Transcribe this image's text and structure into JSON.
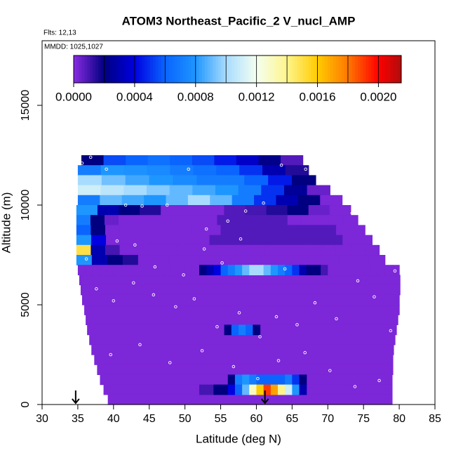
{
  "chart_data": {
    "type": "heatmap",
    "title": "ATOM3 Northeast_Pacific_2 V_nucl_AMP",
    "subtitle": "Flts: 12,13",
    "annotation": "MMDD: 1025,1027",
    "xlabel": "Latitude (deg N)",
    "ylabel": "Altitude (m)",
    "xlim": [
      30,
      85
    ],
    "xticks": [
      30,
      35,
      40,
      45,
      50,
      55,
      60,
      65,
      70,
      75,
      80,
      85
    ],
    "ylim": [
      0,
      18240
    ],
    "yticks": [
      0,
      5000,
      10000,
      15000
    ],
    "clim": [
      0,
      0.00215
    ],
    "colorstops": [
      0,
      0.0002,
      0.0004,
      0.0006,
      0.0008,
      0.001,
      0.0012,
      0.0014,
      0.0016,
      0.0018,
      0.002,
      0.0022
    ],
    "colors": [
      "#8a2be2",
      "#000080",
      "#0000e0",
      "#0a64ff",
      "#1e96ff",
      "#a8dcff",
      "#f4fff0",
      "#fff48c",
      "#ffcc00",
      "#ff7800",
      "#ff0000",
      "#961010"
    ],
    "cticks": [
      {
        "value": 0,
        "label": "0.0000"
      },
      0.0004,
      0.0008,
      0.0012,
      0.0016,
      {
        "value": 0.002,
        "label": "0.0020"
      }
    ],
    "rows": [
      {
        "alt": [
          6000,
          6500
        ],
        "lat": [
          35.2,
          80.1
        ],
        "values": [
          2e-05
        ]
      },
      {
        "alt": [
          5500,
          6000
        ],
        "lat": [
          35.4,
          80.1
        ],
        "values": [
          2e-05
        ]
      },
      {
        "alt": [
          5000,
          5500
        ],
        "lat": [
          35.6,
          80
        ],
        "values": [
          2e-05
        ]
      },
      {
        "alt": [
          4500,
          5000
        ],
        "lat": [
          35.9,
          80
        ],
        "values": [
          2e-05
        ]
      },
      {
        "alt": [
          4000,
          4500
        ],
        "lat": [
          36.1,
          79.8
        ],
        "values": [
          2e-05
        ]
      },
      {
        "alt": [
          3500,
          4000
        ],
        "lat": [
          36.3,
          79.6
        ],
        "values": [
          2e-05
        ]
      },
      {
        "alt": [
          3000,
          3500
        ],
        "lat": [
          36.6,
          79.4
        ],
        "values": [
          2e-05
        ]
      },
      {
        "alt": [
          2500,
          3000
        ],
        "lat": [
          36.9,
          79.2
        ],
        "values": [
          2e-05
        ]
      },
      {
        "alt": [
          2000,
          2500
        ],
        "lat": [
          37.3,
          79.1
        ],
        "values": [
          2e-05
        ]
      },
      {
        "alt": [
          1500,
          2000
        ],
        "lat": [
          37.7,
          79.1
        ],
        "values": [
          2e-05
        ]
      },
      {
        "alt": [
          1000,
          1500
        ],
        "lat": [
          38.1,
          79
        ],
        "values": [
          2e-05
        ]
      },
      {
        "alt": [
          500,
          1000
        ],
        "lat": [
          38.6,
          79
        ],
        "values": [
          2e-05
        ]
      },
      {
        "alt": [
          0,
          500
        ],
        "lat": [
          39.2,
          79
        ],
        "values": [
          2e-05
        ]
      },
      {
        "alt": [
          12000,
          12500
        ],
        "lat": [
          35.5,
          66.5
        ],
        "values": [
          0.0002,
          0.00055,
          0.0006,
          0.00065,
          0.0006,
          0.00055,
          0.00045,
          0.00035,
          0.00022,
          8e-05
        ]
      },
      {
        "alt": [
          11500,
          12000
        ],
        "lat": [
          35,
          67.3
        ],
        "values": [
          0.0007,
          0.0008,
          0.00078,
          0.00075,
          0.0007,
          0.00065,
          0.0006,
          0.0005,
          0.0003,
          0.00015
        ]
      },
      {
        "alt": [
          11000,
          11500
        ],
        "lat": [
          35,
          68.3
        ],
        "values": [
          0.001,
          0.00092,
          0.00085,
          0.0008,
          0.00075,
          0.0007,
          0.0007,
          0.0006,
          0.00045,
          0.0002
        ]
      },
      {
        "alt": [
          10500,
          11000
        ],
        "lat": [
          35,
          70.3
        ],
        "values": [
          0.0011,
          0.00105,
          0.001,
          0.00095,
          0.0009,
          0.00085,
          0.0008,
          0.0007,
          0.0005,
          0.00025,
          5e-05
        ]
      },
      {
        "alt": [
          10000,
          10500
        ],
        "lat": [
          35,
          72
        ],
        "values": [
          0.0007,
          0.0009,
          0.00085,
          0.0008,
          0.0009,
          0.001,
          0.0009,
          0.0007,
          0.0005,
          0.0003,
          0.0002,
          2e-05
        ]
      },
      {
        "alt": [
          9500,
          10000
        ],
        "lat": [
          34.8,
          73.2
        ],
        "values": [
          0.0008,
          0.0003,
          0.0002,
          0.00015,
          2e-05,
          2e-05,
          2e-05,
          8e-05,
          0.0001,
          0.00015,
          0.0002,
          5e-05,
          2e-05
        ]
      },
      {
        "alt": [
          9000,
          9500
        ],
        "lat": [
          34.8,
          74.2
        ],
        "values": [
          0.0007,
          0.0002,
          5e-05,
          2e-05,
          2e-05,
          2e-05,
          2e-05,
          2e-05,
          2e-05,
          2e-05,
          8e-05,
          8e-05,
          8e-05,
          8e-05,
          8e-05,
          2e-05,
          2e-05,
          2e-05,
          2e-05,
          2e-05
        ]
      },
      {
        "alt": [
          8500,
          9000
        ],
        "lat": [
          34.8,
          75.2
        ],
        "values": [
          0.0006,
          0.0002,
          2e-05,
          2e-05,
          2e-05,
          2e-05,
          2e-05,
          2e-05,
          2e-05,
          2e-05,
          8e-05,
          8e-05,
          8e-05,
          8e-05,
          8e-05,
          8e-05,
          8e-05,
          8e-05,
          2e-05,
          2e-05
        ]
      },
      {
        "alt": [
          8000,
          8500
        ],
        "lat": [
          34.8,
          76.2
        ],
        "values": [
          0.0008,
          0.0004,
          2e-05,
          2e-05,
          2e-05,
          2e-05,
          2e-05,
          2e-05,
          2e-05,
          8e-05,
          8e-05,
          8e-05,
          8e-05,
          8e-05,
          8e-05,
          8e-05,
          8e-05,
          8e-05,
          2e-05,
          2e-05
        ]
      },
      {
        "alt": [
          7500,
          8000
        ],
        "lat": [
          34.8,
          77.2
        ],
        "values": [
          0.0015,
          0.0003,
          0.0001,
          2e-05,
          2e-05,
          2e-05,
          2e-05,
          2e-05,
          2e-05,
          2e-05,
          2e-05,
          2e-05,
          2e-05,
          2e-05,
          2e-05,
          2e-05,
          2e-05,
          2e-05,
          2e-05,
          2e-05,
          2e-05
        ]
      },
      {
        "alt": [
          7000,
          7500
        ],
        "lat": [
          34.8,
          78
        ],
        "values": [
          0.0008,
          0.0003,
          0.0002,
          0.00015,
          2e-05,
          2e-05,
          2e-05,
          2e-05,
          2e-05,
          2e-05,
          2e-05,
          2e-05,
          2e-05,
          2e-05,
          2e-05,
          2e-05,
          2e-05,
          2e-05,
          2e-05,
          2e-05
        ]
      },
      {
        "alt": [
          6500,
          7000
        ],
        "lat": [
          35,
          80
        ],
        "values": [
          2e-05,
          2e-05,
          2e-05,
          2e-05,
          2e-05,
          2e-05,
          2e-05,
          2e-05,
          2e-05,
          2e-05,
          2e-05,
          2e-05,
          2e-05,
          2e-05,
          2e-05,
          2e-05,
          2e-05,
          0.0002,
          0.0003,
          0.0004,
          0.0006,
          0.0007,
          0.0008,
          0.0009,
          0.001,
          0.001,
          0.0009,
          0.0008,
          0.0007,
          0.0006,
          0.0005,
          0.0003,
          0.0002,
          0.0002,
          0.0001,
          2e-05,
          2e-05,
          2e-05,
          2e-05,
          2e-05,
          2e-05,
          2e-05,
          2e-05,
          2e-05,
          2e-05
        ]
      },
      {
        "alt": [
          3500,
          4000
        ],
        "lat": [
          55.5,
          60.5
        ],
        "values": [
          0.0002,
          0.0006,
          0.0007,
          0.0006,
          0.0002
        ]
      },
      {
        "alt": [
          1000,
          1500
        ],
        "lat": [
          56,
          67
        ],
        "values": [
          0.0002,
          0.0007,
          0.0008,
          0.0007,
          0.0006,
          0.0006,
          0.0006,
          0.0006,
          0.0007,
          0.0005,
          0.0002
        ]
      },
      {
        "alt": [
          500,
          1000
        ],
        "lat": [
          52,
          67
        ],
        "values": [
          0.0001,
          0.0001,
          0.0002,
          0.0002,
          0.0004,
          0.0006,
          0.0009,
          0.0013,
          0.0016,
          0.0019,
          0.0017,
          0.0014,
          0.0011,
          0.0008,
          0.0003
        ]
      }
    ],
    "points": {
      "color": "#ffffff",
      "lat": [
        35.6,
        36.8,
        39,
        41.7,
        44,
        47.5,
        50.5,
        53,
        56,
        58.5,
        61,
        63.5,
        36.2,
        40.5,
        43,
        45.8,
        49.8,
        52.7,
        55.2,
        57.8,
        64,
        66.9,
        70.6,
        73.4,
        75.8,
        78.4,
        79.4,
        37.6,
        40,
        42.8,
        45.6,
        48.7,
        51.3,
        54.5,
        57.6,
        60.5,
        62.8,
        65.7,
        68.2,
        71.2,
        74.2,
        76.5,
        78.8,
        39.6,
        43.7,
        47.9,
        52.4,
        56.8,
        60.2,
        63.1,
        66.8,
        70.3,
        73.8,
        77.2
      ],
      "alt": [
        12100,
        12400,
        11800,
        10000,
        9950,
        10000,
        11800,
        8800,
        9200,
        9700,
        10100,
        12000,
        7300,
        8200,
        8000,
        6900,
        6500,
        7800,
        7100,
        8300,
        6800,
        11800,
        10600,
        9600,
        8800,
        7900,
        6700,
        5800,
        5200,
        6100,
        5500,
        4900,
        5300,
        3900,
        4600,
        3400,
        4400,
        4000,
        5100,
        4300,
        6200,
        5400,
        3700,
        2500,
        3000,
        2100,
        2700,
        1900,
        1300,
        2200,
        2600,
        1700,
        900,
        1200
      ]
    },
    "arrows": [
      34.7,
      61.2
    ]
  }
}
